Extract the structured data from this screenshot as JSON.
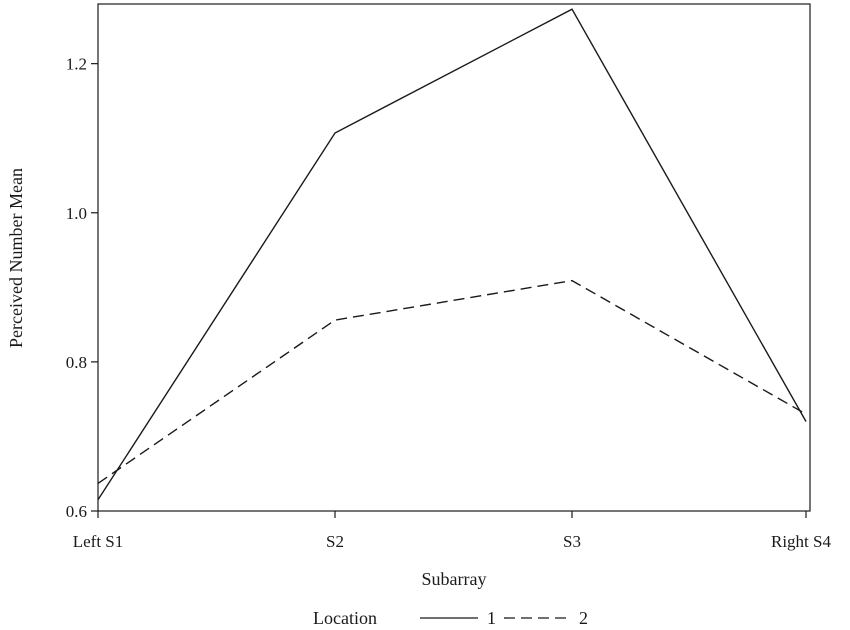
{
  "chart_data": {
    "type": "line",
    "categories": [
      "Left S1",
      "S2",
      "S3",
      "Right S4"
    ],
    "series": [
      {
        "name": "1",
        "values": [
          0.615,
          1.107,
          1.273,
          0.72
        ],
        "style": "solid"
      },
      {
        "name": "2",
        "values": [
          0.637,
          0.856,
          0.909,
          0.73
        ],
        "style": "dashed"
      }
    ],
    "xlabel": "Subarray",
    "ylabel": "Perceived Number Mean",
    "ylim": [
      0.6,
      1.28
    ],
    "yticks": [
      0.6,
      0.8,
      1.0,
      1.2
    ],
    "ytick_labels": [
      "0.6",
      "0.8",
      "1.0",
      "1.2"
    ],
    "grid": false,
    "legend": {
      "title": "Location",
      "position": "bottom"
    },
    "colors": {
      "line": "#1a1a1a"
    }
  }
}
